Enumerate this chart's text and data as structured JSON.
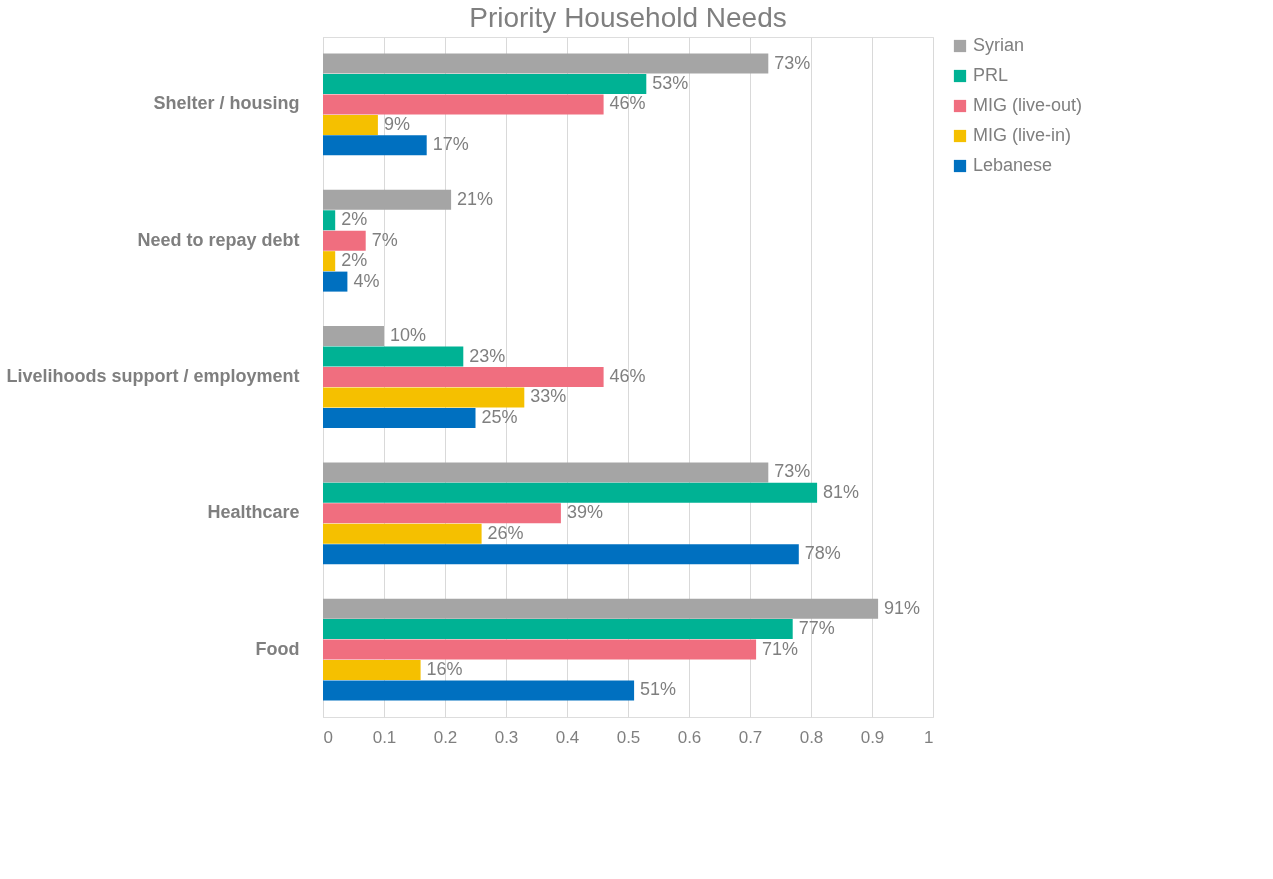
{
  "chart_data": {
    "type": "bar",
    "orientation": "horizontal",
    "title": "Priority Household Needs",
    "categories": [
      "Shelter / housing",
      "Need to repay debt",
      "Livelihoods support / employment",
      "Healthcare",
      "Food"
    ],
    "series": [
      {
        "name": "Syrian",
        "color": "#a5a5a5",
        "values": [
          0.73,
          0.21,
          0.1,
          0.73,
          0.91
        ],
        "value_labels": [
          "73%",
          "21%",
          "10%",
          "73%",
          "91%"
        ]
      },
      {
        "name": "PRL",
        "color": "#00b294",
        "values": [
          0.53,
          0.02,
          0.23,
          0.81,
          0.77
        ],
        "value_labels": [
          "53%",
          "2%",
          "23%",
          "81%",
          "77%"
        ]
      },
      {
        "name": "MIG (live-out)",
        "color": "#f06e7f",
        "values": [
          0.46,
          0.07,
          0.46,
          0.39,
          0.71
        ],
        "value_labels": [
          "46%",
          "7%",
          "46%",
          "39%",
          "71%"
        ]
      },
      {
        "name": "MIG (live-in)",
        "color": "#f5c000",
        "values": [
          0.09,
          0.02,
          0.33,
          0.26,
          0.16
        ],
        "value_labels": [
          "9%",
          "2%",
          "33%",
          "26%",
          "16%"
        ]
      },
      {
        "name": "Lebanese",
        "color": "#0070c0",
        "values": [
          0.17,
          0.04,
          0.25,
          0.78,
          0.51
        ],
        "value_labels": [
          "17%",
          "4%",
          "25%",
          "78%",
          "51%"
        ]
      }
    ],
    "xlim": [
      0,
      1
    ],
    "xticks": [
      0,
      0.1,
      0.2,
      0.3,
      0.4,
      0.5,
      0.6,
      0.7,
      0.8,
      0.9,
      1
    ],
    "grid": "x",
    "legend": "right"
  }
}
